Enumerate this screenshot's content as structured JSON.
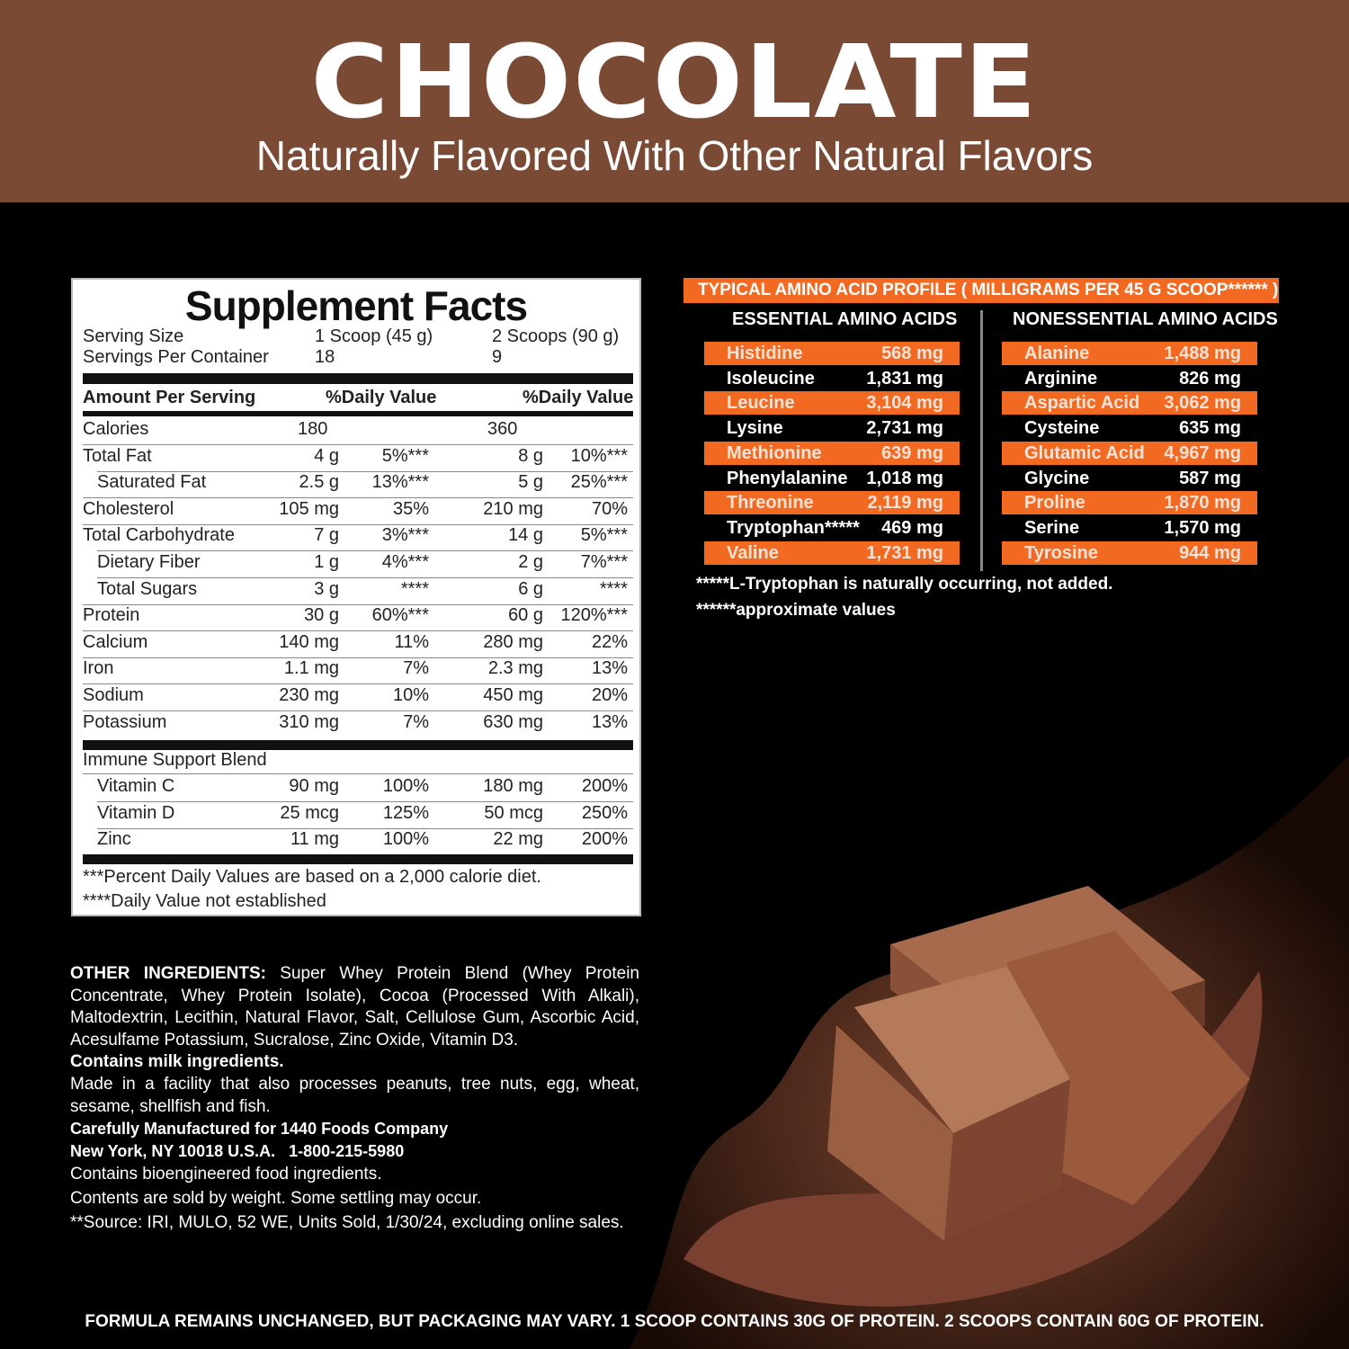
{
  "header": {
    "title": "CHOCOLATE",
    "subtitle": "Naturally Flavored With Other Natural Flavors",
    "bg_color": "#7b4a35"
  },
  "facts": {
    "title": "Supplement Facts",
    "serving_size_label": "Serving Size",
    "serving_size_1": "1 Scoop (45 g)",
    "serving_size_2": "2 Scoops (90 g)",
    "servings_label": "Servings Per Container",
    "servings_1": "18",
    "servings_2": "9",
    "amount_header": "Amount Per Serving",
    "dv_header_1": "%Daily Value",
    "dv_header_2": "%Daily Value",
    "rows": [
      {
        "label": "Calories",
        "a1": "180",
        "d1": "",
        "a2": "360",
        "d2": "",
        "indent": false,
        "calories": true
      },
      {
        "label": "Total Fat",
        "a1": "4 g",
        "d1": "5%***",
        "a2": "8 g",
        "d2": "10%***",
        "indent": false
      },
      {
        "label": "Saturated Fat",
        "a1": "2.5 g",
        "d1": "13%***",
        "a2": "5 g",
        "d2": "25%***",
        "indent": true
      },
      {
        "label": "Cholesterol",
        "a1": "105 mg",
        "d1": "35%",
        "a2": "210 mg",
        "d2": "70%",
        "indent": false
      },
      {
        "label": "Total Carbohydrate",
        "a1": "7 g",
        "d1": "3%***",
        "a2": "14 g",
        "d2": "5%***",
        "indent": false
      },
      {
        "label": "Dietary Fiber",
        "a1": "1 g",
        "d1": "4%***",
        "a2": "2 g",
        "d2": "7%***",
        "indent": true
      },
      {
        "label": "Total Sugars",
        "a1": "3 g",
        "d1": "****",
        "a2": "6 g",
        "d2": "****",
        "indent": true
      },
      {
        "label": "Protein",
        "a1": "30 g",
        "d1": "60%***",
        "a2": "60 g",
        "d2": "120%***",
        "indent": false
      },
      {
        "label": "Calcium",
        "a1": "140 mg",
        "d1": "11%",
        "a2": "280 mg",
        "d2": "22%",
        "indent": false
      },
      {
        "label": "Iron",
        "a1": "1.1 mg",
        "d1": "7%",
        "a2": "2.3 mg",
        "d2": "13%",
        "indent": false
      },
      {
        "label": "Sodium",
        "a1": "230 mg",
        "d1": "10%",
        "a2": "450 mg",
        "d2": "20%",
        "indent": false
      },
      {
        "label": "Potassium",
        "a1": "310 mg",
        "d1": "7%",
        "a2": "630 mg",
        "d2": "13%",
        "indent": false
      }
    ],
    "blend_label": "Immune Support Blend",
    "blend_rows": [
      {
        "label": "Vitamin C",
        "a1": "90 mg",
        "d1": "100%",
        "a2": "180 mg",
        "d2": "200%"
      },
      {
        "label": "Vitamin D",
        "a1": "25 mcg",
        "d1": "125%",
        "a2": "50 mcg",
        "d2": "250%"
      },
      {
        "label": "Zinc",
        "a1": "11 mg",
        "d1": "100%",
        "a2": "22 mg",
        "d2": "200%"
      }
    ],
    "footnote_1": "***Percent Daily Values are based on a 2,000 calorie diet.",
    "footnote_2": "****Daily Value not established"
  },
  "amino": {
    "title": "TYPICAL AMINO ACID PROFILE ( MILLIGRAMS PER 45 G SCOOP****** )",
    "accent": "#f26a21",
    "essential_header": "ESSENTIAL AMINO ACIDS",
    "nonessential_header": "NONESSENTIAL AMINO ACIDS",
    "essential": [
      {
        "name": "Histidine",
        "value": "568 mg"
      },
      {
        "name": "Isoleucine",
        "value": "1,831 mg"
      },
      {
        "name": "Leucine",
        "value": "3,104 mg"
      },
      {
        "name": "Lysine",
        "value": "2,731 mg"
      },
      {
        "name": "Methionine",
        "value": "639 mg"
      },
      {
        "name": "Phenylalanine",
        "value": "1,018 mg"
      },
      {
        "name": "Threonine",
        "value": "2,119 mg"
      },
      {
        "name": "Tryptophan*****",
        "value": "469 mg"
      },
      {
        "name": "Valine",
        "value": "1,731 mg"
      }
    ],
    "nonessential": [
      {
        "name": "Alanine",
        "value": "1,488 mg"
      },
      {
        "name": "Arginine",
        "value": "826 mg"
      },
      {
        "name": "Aspartic Acid",
        "value": "3,062 mg"
      },
      {
        "name": "Cysteine",
        "value": "635 mg"
      },
      {
        "name": "Glutamic Acid",
        "value": "4,967 mg"
      },
      {
        "name": "Glycine",
        "value": "587 mg"
      },
      {
        "name": "Proline",
        "value": "1,870 mg"
      },
      {
        "name": "Serine",
        "value": "1,570 mg"
      },
      {
        "name": "Tyrosine",
        "value": "944 mg"
      }
    ],
    "note_1": "*****L-Tryptophan is naturally occurring, not added.",
    "note_2": "******approximate values"
  },
  "ingredients": {
    "label": "OTHER INGREDIENTS:",
    "text": " Super Whey Protein Blend (Whey Protein Concentrate, Whey Protein Isolate), Cocoa (Processed With Alkali), Maltodextrin, Lecithin, Natural Flavor, Salt, Cellulose Gum, Ascorbic Acid, Acesulfame Potassium, Sucralose, Zinc Oxide, Vitamin D3.",
    "allergen": "Contains milk ingredients.",
    "facility": "Made in a facility that also processes peanuts, tree nuts, egg, wheat, sesame, shellfish and fish.",
    "manufacturer_1": "Carefully Manufactured for 1440 Foods Company",
    "manufacturer_2": "New York, NY 10018 U.S.A.   1-800-215-5980",
    "bioengineered": "Contains bioengineered food ingredients.",
    "weight": "Contents are sold by weight. Some settling may occur.",
    "source": "**Source: IRI, MULO, 52 WE, Units Sold, 1/30/24, excluding online sales."
  },
  "bottom_text": "FORMULA REMAINS UNCHANGED, BUT PACKAGING MAY VARY. 1 SCOOP CONTAINS 30G OF PROTEIN. 2 SCOOPS CONTAIN 60G OF PROTEIN."
}
